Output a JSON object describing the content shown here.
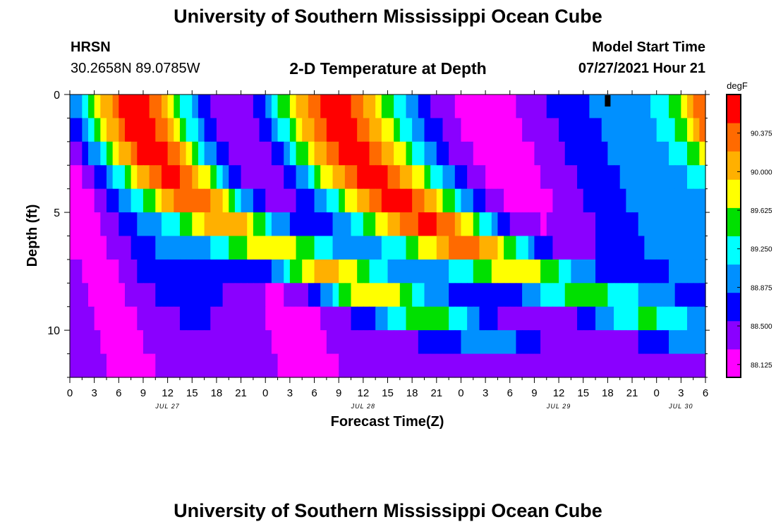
{
  "page": {
    "title_top": "University of Southern Mississippi Ocean Cube",
    "title_bottom": "University of Southern Mississippi Ocean Cube",
    "station_name": "HRSN",
    "station_coords": "30.2658N  89.0785W",
    "model_start_label": "Model Start Time",
    "model_start_value": "07/27/2021 Hour 21"
  },
  "chart_data": {
    "type": "heatmap",
    "title": "2-D Temperature at Depth",
    "xlabel": "Forecast Time(Z)",
    "ylabel": "Depth (ft)",
    "x_ticks": [
      "0",
      "3",
      "6",
      "9",
      "12",
      "15",
      "18",
      "21",
      "0",
      "3",
      "6",
      "9",
      "12",
      "15",
      "18",
      "21",
      "0",
      "3",
      "6",
      "9",
      "12",
      "15",
      "18",
      "21",
      "0",
      "3",
      "6"
    ],
    "date_labels": [
      {
        "label": "JUL 27",
        "at_hour": 12
      },
      {
        "label": "JUL 28",
        "at_hour": 36
      },
      {
        "label": "JUL 29",
        "at_hour": 60
      },
      {
        "label": "JUL 30",
        "at_hour": 75
      }
    ],
    "x_range_hours": [
      0,
      78
    ],
    "y_range_ft": [
      0,
      12
    ],
    "y_ticks": [
      0,
      5,
      10
    ],
    "y_reversed": true,
    "current_time_hour": 66,
    "colorbar": {
      "units": "degF",
      "range": [
        88.0,
        90.75
      ],
      "tick_values": [
        88.125,
        88.5,
        88.875,
        89.25,
        89.625,
        90.0,
        90.375
      ],
      "tick_labels": [
        "88.125",
        "88.500",
        "88.875",
        "89.250",
        "89.625",
        "90.000",
        "90.375"
      ],
      "colors": [
        "#ff00ff",
        "#8a00ff",
        "#0000ff",
        "#0090ff",
        "#00ffff",
        "#00e000",
        "#ffff00",
        "#ffb000",
        "#ff6a00",
        "#ff0000"
      ]
    }
  }
}
